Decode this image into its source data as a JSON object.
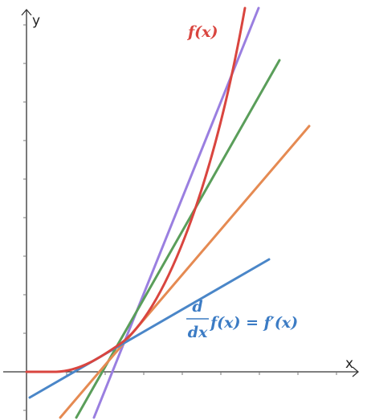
{
  "axes": {
    "x_label": "x",
    "y_label": "y"
  },
  "labels": {
    "function": "f(x)",
    "derivative_numerator": "d",
    "derivative_denominator": "dx",
    "derivative_rhs": "f(x) = f′(x)"
  }
}
